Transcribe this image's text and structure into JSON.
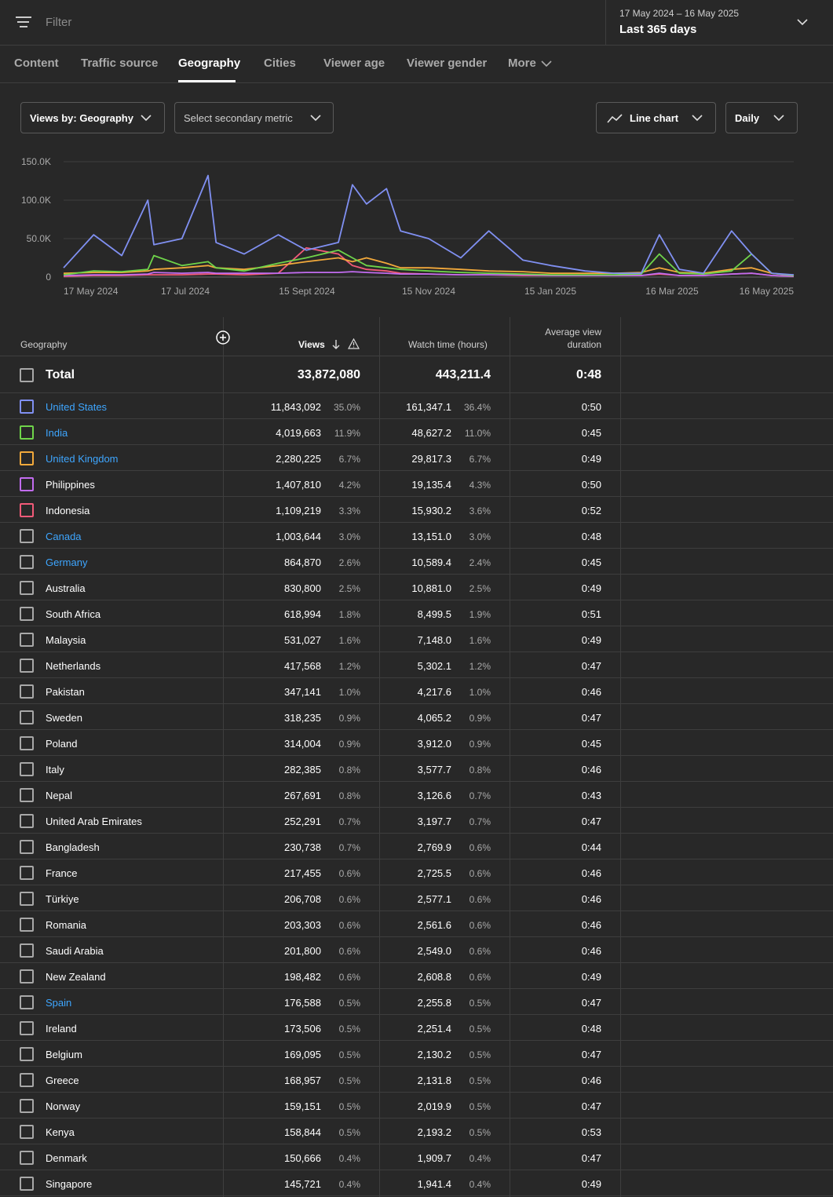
{
  "filter": {
    "placeholder": "Filter"
  },
  "date_range": {
    "range": "17 May 2024 – 16 May 2025",
    "label": "Last 365 days"
  },
  "tabs": [
    "Content",
    "Traffic source",
    "Geography",
    "Cities",
    "Viewer age",
    "Viewer gender",
    "More"
  ],
  "active_tab": "Geography",
  "controls": {
    "primary_metric": "Views by: Geography",
    "secondary_metric": "Select secondary metric",
    "chart_type": "Line chart",
    "interval": "Daily"
  },
  "chart_data": {
    "type": "line",
    "y_ticks": [
      "150.0K",
      "100.0K",
      "50.0K",
      "0"
    ],
    "ylim": [
      0,
      150000
    ],
    "x_ticks": [
      "17 May 2024",
      "17 Jul 2024",
      "15 Sept 2024",
      "15 Nov 2024",
      "15 Jan 2025",
      "16 Mar 2025",
      "16 May 2025"
    ],
    "x": [
      "2024-05-17",
      "2024-06-01",
      "2024-06-15",
      "2024-06-28",
      "2024-07-01",
      "2024-07-15",
      "2024-07-28",
      "2024-08-01",
      "2024-08-15",
      "2024-09-01",
      "2024-09-15",
      "2024-10-01",
      "2024-10-08",
      "2024-10-15",
      "2024-10-25",
      "2024-11-01",
      "2024-11-15",
      "2024-12-01",
      "2024-12-15",
      "2025-01-01",
      "2025-01-15",
      "2025-02-01",
      "2025-02-15",
      "2025-03-01",
      "2025-03-10",
      "2025-03-20",
      "2025-04-01",
      "2025-04-15",
      "2025-04-25",
      "2025-05-05",
      "2025-05-16"
    ],
    "series": [
      {
        "color": "#8090f2",
        "values": [
          12000,
          55000,
          28000,
          100000,
          42000,
          50000,
          132000,
          45000,
          30000,
          55000,
          35000,
          45000,
          120000,
          95000,
          115000,
          60000,
          50000,
          25000,
          60000,
          22000,
          15000,
          8000,
          5000,
          5000,
          55000,
          10000,
          5000,
          60000,
          30000,
          5000,
          3000
        ]
      },
      {
        "color": "#6fd44a",
        "values": [
          3000,
          8000,
          7000,
          10000,
          28000,
          15000,
          20000,
          12000,
          8000,
          18000,
          25000,
          35000,
          25000,
          15000,
          12000,
          10000,
          8000,
          6000,
          5000,
          4000,
          3000,
          3000,
          3000,
          4000,
          30000,
          5000,
          4000,
          8000,
          30000,
          5000,
          2000
        ]
      },
      {
        "color": "#f2a93b",
        "values": [
          5000,
          6000,
          6000,
          8000,
          10000,
          12000,
          15000,
          12000,
          10000,
          15000,
          20000,
          25000,
          20000,
          25000,
          18000,
          12000,
          12000,
          10000,
          8000,
          7000,
          5000,
          5000,
          5000,
          6000,
          12000,
          6000,
          5000,
          10000,
          12000,
          5000,
          2000
        ]
      },
      {
        "color": "#c26cf0",
        "values": [
          2000,
          3000,
          3000,
          4000,
          6000,
          5000,
          6000,
          5000,
          5000,
          5000,
          6000,
          6000,
          7000,
          6000,
          5000,
          4000,
          4000,
          3000,
          3000,
          3000,
          2000,
          2000,
          2000,
          2000,
          5000,
          2000,
          2000,
          4000,
          5000,
          2000,
          1000
        ]
      },
      {
        "color": "#f25a78",
        "values": [
          1000,
          2000,
          2000,
          3000,
          3000,
          3000,
          4000,
          4000,
          3000,
          5000,
          38000,
          30000,
          15000,
          10000,
          8000,
          5000,
          4000,
          3000,
          3000,
          2000,
          2000,
          2000,
          2000,
          2000,
          4000,
          2000,
          2000,
          4000,
          5000,
          2000,
          1000
        ]
      }
    ]
  },
  "table": {
    "headers": {
      "geography": "Geography",
      "views": "Views",
      "watch_time": "Watch time (hours)",
      "avd_line1": "Average view",
      "avd_line2": "duration"
    },
    "total": {
      "label": "Total",
      "views": "33,872,080",
      "watch_time": "443,211.4",
      "avd": "0:48"
    },
    "rows": [
      {
        "name": "United States",
        "views": "11,843,092",
        "views_pct": "35.0%",
        "watch": "161,347.1",
        "watch_pct": "36.4%",
        "avd": "0:50",
        "box_color": "#8090f2",
        "link": true
      },
      {
        "name": "India",
        "views": "4,019,663",
        "views_pct": "11.9%",
        "watch": "48,627.2",
        "watch_pct": "11.0%",
        "avd": "0:45",
        "box_color": "#6fd44a",
        "link": true
      },
      {
        "name": "United Kingdom",
        "views": "2,280,225",
        "views_pct": "6.7%",
        "watch": "29,817.3",
        "watch_pct": "6.7%",
        "avd": "0:49",
        "box_color": "#f2a93b",
        "link": true
      },
      {
        "name": "Philippines",
        "views": "1,407,810",
        "views_pct": "4.2%",
        "watch": "19,135.4",
        "watch_pct": "4.3%",
        "avd": "0:50",
        "box_color": "#c26cf0",
        "link": false
      },
      {
        "name": "Indonesia",
        "views": "1,109,219",
        "views_pct": "3.3%",
        "watch": "15,930.2",
        "watch_pct": "3.6%",
        "avd": "0:52",
        "box_color": "#f25a78",
        "link": false
      },
      {
        "name": "Canada",
        "views": "1,003,644",
        "views_pct": "3.0%",
        "watch": "13,151.0",
        "watch_pct": "3.0%",
        "avd": "0:48",
        "box_color": "#a8a8a8",
        "link": true
      },
      {
        "name": "Germany",
        "views": "864,870",
        "views_pct": "2.6%",
        "watch": "10,589.4",
        "watch_pct": "2.4%",
        "avd": "0:45",
        "box_color": "#a8a8a8",
        "link": true
      },
      {
        "name": "Australia",
        "views": "830,800",
        "views_pct": "2.5%",
        "watch": "10,881.0",
        "watch_pct": "2.5%",
        "avd": "0:49",
        "box_color": "#a8a8a8",
        "link": false
      },
      {
        "name": "South Africa",
        "views": "618,994",
        "views_pct": "1.8%",
        "watch": "8,499.5",
        "watch_pct": "1.9%",
        "avd": "0:51",
        "box_color": "#a8a8a8",
        "link": false
      },
      {
        "name": "Malaysia",
        "views": "531,027",
        "views_pct": "1.6%",
        "watch": "7,148.0",
        "watch_pct": "1.6%",
        "avd": "0:49",
        "box_color": "#a8a8a8",
        "link": false
      },
      {
        "name": "Netherlands",
        "views": "417,568",
        "views_pct": "1.2%",
        "watch": "5,302.1",
        "watch_pct": "1.2%",
        "avd": "0:47",
        "box_color": "#a8a8a8",
        "link": false
      },
      {
        "name": "Pakistan",
        "views": "347,141",
        "views_pct": "1.0%",
        "watch": "4,217.6",
        "watch_pct": "1.0%",
        "avd": "0:46",
        "box_color": "#a8a8a8",
        "link": false
      },
      {
        "name": "Sweden",
        "views": "318,235",
        "views_pct": "0.9%",
        "watch": "4,065.2",
        "watch_pct": "0.9%",
        "avd": "0:47",
        "box_color": "#a8a8a8",
        "link": false
      },
      {
        "name": "Poland",
        "views": "314,004",
        "views_pct": "0.9%",
        "watch": "3,912.0",
        "watch_pct": "0.9%",
        "avd": "0:45",
        "box_color": "#a8a8a8",
        "link": false
      },
      {
        "name": "Italy",
        "views": "282,385",
        "views_pct": "0.8%",
        "watch": "3,577.7",
        "watch_pct": "0.8%",
        "avd": "0:46",
        "box_color": "#a8a8a8",
        "link": false
      },
      {
        "name": "Nepal",
        "views": "267,691",
        "views_pct": "0.8%",
        "watch": "3,126.6",
        "watch_pct": "0.7%",
        "avd": "0:43",
        "box_color": "#a8a8a8",
        "link": false
      },
      {
        "name": "United Arab Emirates",
        "views": "252,291",
        "views_pct": "0.7%",
        "watch": "3,197.7",
        "watch_pct": "0.7%",
        "avd": "0:47",
        "box_color": "#a8a8a8",
        "link": false
      },
      {
        "name": "Bangladesh",
        "views": "230,738",
        "views_pct": "0.7%",
        "watch": "2,769.9",
        "watch_pct": "0.6%",
        "avd": "0:44",
        "box_color": "#a8a8a8",
        "link": false
      },
      {
        "name": "France",
        "views": "217,455",
        "views_pct": "0.6%",
        "watch": "2,725.5",
        "watch_pct": "0.6%",
        "avd": "0:46",
        "box_color": "#a8a8a8",
        "link": false
      },
      {
        "name": "Türkiye",
        "views": "206,708",
        "views_pct": "0.6%",
        "watch": "2,577.1",
        "watch_pct": "0.6%",
        "avd": "0:46",
        "box_color": "#a8a8a8",
        "link": false
      },
      {
        "name": "Romania",
        "views": "203,303",
        "views_pct": "0.6%",
        "watch": "2,561.6",
        "watch_pct": "0.6%",
        "avd": "0:46",
        "box_color": "#a8a8a8",
        "link": false
      },
      {
        "name": "Saudi Arabia",
        "views": "201,800",
        "views_pct": "0.6%",
        "watch": "2,549.0",
        "watch_pct": "0.6%",
        "avd": "0:46",
        "box_color": "#a8a8a8",
        "link": false
      },
      {
        "name": "New Zealand",
        "views": "198,482",
        "views_pct": "0.6%",
        "watch": "2,608.8",
        "watch_pct": "0.6%",
        "avd": "0:49",
        "box_color": "#a8a8a8",
        "link": false
      },
      {
        "name": "Spain",
        "views": "176,588",
        "views_pct": "0.5%",
        "watch": "2,255.8",
        "watch_pct": "0.5%",
        "avd": "0:47",
        "box_color": "#a8a8a8",
        "link": true
      },
      {
        "name": "Ireland",
        "views": "173,506",
        "views_pct": "0.5%",
        "watch": "2,251.4",
        "watch_pct": "0.5%",
        "avd": "0:48",
        "box_color": "#a8a8a8",
        "link": false
      },
      {
        "name": "Belgium",
        "views": "169,095",
        "views_pct": "0.5%",
        "watch": "2,130.2",
        "watch_pct": "0.5%",
        "avd": "0:47",
        "box_color": "#a8a8a8",
        "link": false
      },
      {
        "name": "Greece",
        "views": "168,957",
        "views_pct": "0.5%",
        "watch": "2,131.8",
        "watch_pct": "0.5%",
        "avd": "0:46",
        "box_color": "#a8a8a8",
        "link": false
      },
      {
        "name": "Norway",
        "views": "159,151",
        "views_pct": "0.5%",
        "watch": "2,019.9",
        "watch_pct": "0.5%",
        "avd": "0:47",
        "box_color": "#a8a8a8",
        "link": false
      },
      {
        "name": "Kenya",
        "views": "158,844",
        "views_pct": "0.5%",
        "watch": "2,193.2",
        "watch_pct": "0.5%",
        "avd": "0:53",
        "box_color": "#a8a8a8",
        "link": false
      },
      {
        "name": "Denmark",
        "views": "150,666",
        "views_pct": "0.4%",
        "watch": "1,909.7",
        "watch_pct": "0.4%",
        "avd": "0:47",
        "box_color": "#a8a8a8",
        "link": false
      },
      {
        "name": "Singapore",
        "views": "145,721",
        "views_pct": "0.4%",
        "watch": "1,941.4",
        "watch_pct": "0.4%",
        "avd": "0:49",
        "box_color": "#a8a8a8",
        "link": false
      }
    ]
  }
}
